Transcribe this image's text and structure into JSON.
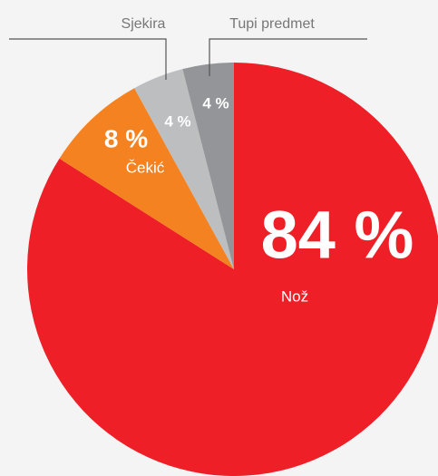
{
  "chart_data": {
    "type": "pie",
    "categories": [
      "Nož",
      "Čekić",
      "Sjekira",
      "Tupi predmet"
    ],
    "values": [
      84,
      8,
      4,
      4
    ],
    "value_labels": [
      "84 %",
      "8 %",
      "4 %",
      "4 %"
    ],
    "colors": [
      "#ee1f26",
      "#f58220",
      "#bcbec0",
      "#939598"
    ]
  }
}
